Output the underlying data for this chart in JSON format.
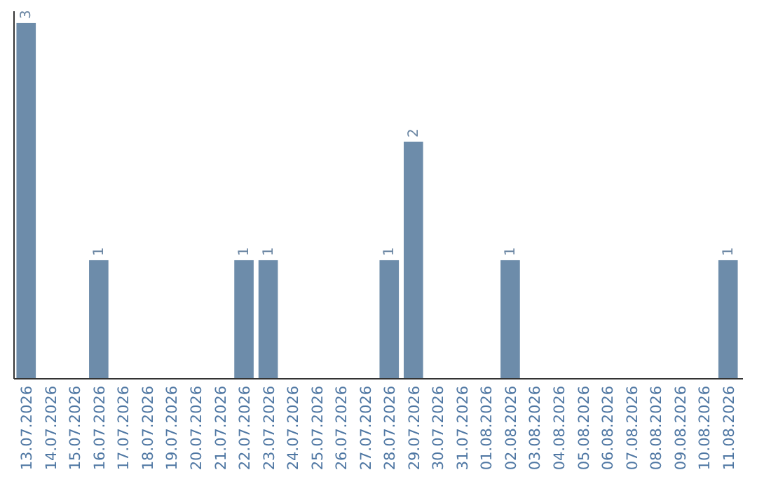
{
  "chart_data": {
    "type": "bar",
    "categories": [
      "13.07.2026",
      "14.07.2026",
      "15.07.2026",
      "16.07.2026",
      "17.07.2026",
      "18.07.2026",
      "19.07.2026",
      "20.07.2026",
      "21.07.2026",
      "22.07.2026",
      "23.07.2026",
      "24.07.2026",
      "25.07.2026",
      "26.07.2026",
      "27.07.2026",
      "28.07.2026",
      "29.07.2026",
      "30.07.2026",
      "31.07.2026",
      "01.08.2026",
      "02.08.2026",
      "03.08.2026",
      "04.08.2026",
      "05.08.2026",
      "06.08.2026",
      "07.08.2026",
      "08.08.2026",
      "09.08.2026",
      "10.08.2026",
      "11.08.2026"
    ],
    "values": [
      3,
      0,
      0,
      1,
      0,
      0,
      0,
      0,
      0,
      1,
      1,
      0,
      0,
      0,
      0,
      1,
      2,
      0,
      0,
      0,
      1,
      0,
      0,
      0,
      0,
      0,
      0,
      0,
      0,
      1
    ],
    "value_labels": [
      "3",
      null,
      null,
      "1",
      null,
      null,
      null,
      null,
      null,
      "1",
      "1",
      null,
      null,
      null,
      null,
      "1",
      "2",
      null,
      null,
      null,
      "1",
      null,
      null,
      null,
      null,
      null,
      null,
      null,
      null,
      "1"
    ],
    "color": "#6d8caa",
    "ylim": [
      0,
      3.1
    ],
    "tick_labels": "x"
  }
}
